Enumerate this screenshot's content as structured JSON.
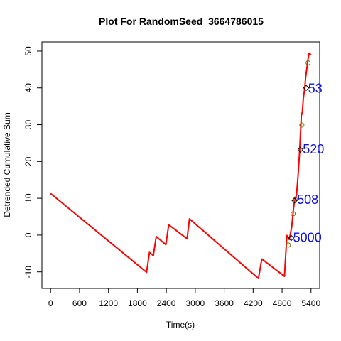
{
  "chart_data": {
    "type": "line",
    "title": "Plot For RandomSeed_3664786015",
    "xlabel": "Time(s)",
    "ylabel": "Detrended Cumulative Sum",
    "xlim": [
      -180,
      5580
    ],
    "ylim": [
      -14.5,
      52.5
    ],
    "xticks": [
      0,
      600,
      1200,
      1800,
      2400,
      3000,
      3600,
      4200,
      4800,
      5400
    ],
    "yticks": [
      -10,
      0,
      10,
      20,
      30,
      40,
      50
    ],
    "grid": false,
    "legend": "none",
    "line_color": "#ff0000",
    "annotation_color": "#1010e0",
    "series": [
      {
        "x": [
          0,
          1990,
          2050,
          2130,
          2190,
          2390,
          2450,
          2830,
          2880,
          4310,
          4380,
          4850,
          4900,
          4950,
          5000,
          5040,
          5060,
          5080,
          5100,
          5130,
          5160,
          5180,
          5200,
          5220,
          5240,
          5270,
          5290,
          5320,
          5340,
          5360,
          5400
        ],
        "y": [
          11.3,
          -10.1,
          -4.7,
          -5.6,
          -0.4,
          -2.6,
          2.8,
          -1.0,
          4.4,
          -11.8,
          -6.5,
          -11.2,
          -0.1,
          -1.2,
          2.2,
          7.5,
          9.5,
          10.0,
          11.0,
          16.0,
          22.0,
          27.0,
          32.5,
          33.5,
          37.0,
          40.0,
          43.0,
          46.0,
          48.0,
          49.4,
          49.0
        ]
      }
    ],
    "circle_markers": [
      {
        "x": 4930,
        "y": -2.7
      },
      {
        "x": 5030,
        "y": 5.8
      },
      {
        "x": 5070,
        "y": 9.8
      },
      {
        "x": 5210,
        "y": 29.9
      },
      {
        "x": 5340,
        "y": 46.8
      }
    ],
    "diamond_markers": [
      {
        "x": 4990,
        "y": -0.8
      },
      {
        "x": 5060,
        "y": 9.4
      },
      {
        "x": 5180,
        "y": 23.2
      },
      {
        "x": 5300,
        "y": 40.0
      }
    ],
    "annotations": [
      {
        "text": "5000",
        "x": 5030,
        "y": -0.5
      },
      {
        "text": "508",
        "x": 5110,
        "y": 9.8
      },
      {
        "text": "520",
        "x": 5230,
        "y": 23.5
      },
      {
        "text": "53",
        "x": 5340,
        "y": 40.0
      }
    ]
  }
}
